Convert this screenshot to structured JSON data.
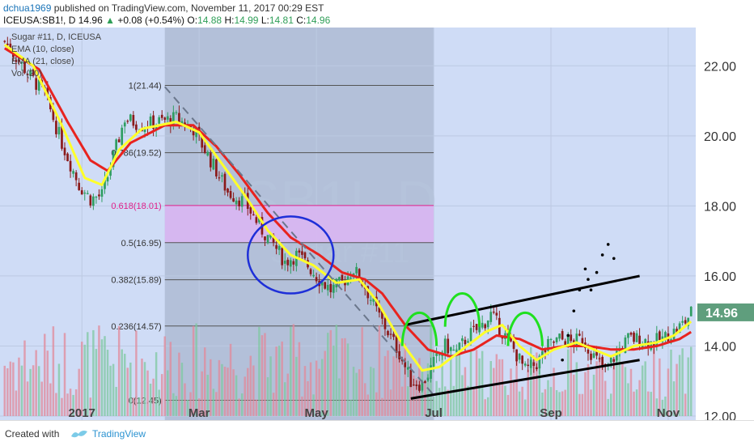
{
  "header": {
    "user": "dchua1969",
    "published_text": "published on TradingView.com, November 11, 2017 00:29 EST",
    "symbol": "ICEUSA:SB1!, D",
    "last": "14.96",
    "change": "+0.08 (+0.54%)",
    "open_label": "O:",
    "open": "14.88",
    "high_label": "H:",
    "high": "14.99",
    "low_label": "L:",
    "low": "14.81",
    "close_label": "C:",
    "close": "14.96"
  },
  "legend": {
    "title": "Sugar #11, D, ICEUSA",
    "ema_fast": "EMA (10, close)",
    "ema_slow": "EMA (21, close)",
    "vol": "Vol (20)"
  },
  "watermark": {
    "symbol": "SB1!, D",
    "name": "Sugar #11"
  },
  "price_badge": "14.96",
  "footer": {
    "created_with": "Created with",
    "brand": "TradingView"
  },
  "colors": {
    "background": "#cfdcf6",
    "shade": "#aab7cf",
    "fib_band": "#d9b6f2",
    "fib_line": "#555555",
    "fib_label_pink": "#e0208a",
    "ema_fast": "#ffff2a",
    "ema_slow": "#e8231f",
    "candle_up": "#2f9e62",
    "candle_down": "#8b1a1a",
    "vol_up": "#7fc8a0",
    "vol_down": "#e28a9a",
    "circle": "#1e2fd8",
    "arc": "#1fe01f",
    "price_badge": "#5f9e7d"
  },
  "chart_data": {
    "type": "candlestick",
    "title": "Sugar #11, D, ICEUSA",
    "ylim": [
      12.0,
      23.0
    ],
    "y_ticks": [
      "12.00",
      "14.00",
      "16.00",
      "18.00",
      "20.00",
      "22.00"
    ],
    "x_ticks": [
      "2017",
      "Mar",
      "May",
      "Jul",
      "Sep",
      "Nov"
    ],
    "x_tick_index": [
      27,
      68,
      109,
      150,
      191,
      232
    ],
    "total_bars": 241,
    "series": [
      {
        "name": "Price",
        "anchors": [
          [
            0,
            22.7
          ],
          [
            8,
            21.8
          ],
          [
            14,
            21.2
          ],
          [
            20,
            19.8
          ],
          [
            26,
            18.6
          ],
          [
            30,
            18.2
          ],
          [
            34,
            18.3
          ],
          [
            38,
            19.4
          ],
          [
            42,
            20.5
          ],
          [
            48,
            20.3
          ],
          [
            54,
            20.4
          ],
          [
            60,
            20.5
          ],
          [
            66,
            20.2
          ],
          [
            70,
            19.6
          ],
          [
            74,
            19.0
          ],
          [
            78,
            18.4
          ],
          [
            84,
            18.1
          ],
          [
            90,
            17.3
          ],
          [
            94,
            16.9
          ],
          [
            98,
            16.4
          ],
          [
            102,
            16.6
          ],
          [
            106,
            16.3
          ],
          [
            110,
            15.9
          ],
          [
            114,
            15.6
          ],
          [
            118,
            15.8
          ],
          [
            122,
            16.2
          ],
          [
            126,
            15.7
          ],
          [
            130,
            15.0
          ],
          [
            134,
            14.4
          ],
          [
            138,
            13.8
          ],
          [
            142,
            13.0
          ],
          [
            146,
            12.9
          ],
          [
            150,
            13.5
          ],
          [
            154,
            14.0
          ],
          [
            158,
            13.8
          ],
          [
            162,
            14.3
          ],
          [
            166,
            14.5
          ],
          [
            170,
            14.9
          ],
          [
            174,
            14.4
          ],
          [
            178,
            13.9
          ],
          [
            182,
            13.3
          ],
          [
            186,
            13.5
          ],
          [
            190,
            14.0
          ],
          [
            194,
            14.2
          ],
          [
            198,
            14.1
          ],
          [
            202,
            14.2
          ],
          [
            206,
            13.7
          ],
          [
            210,
            13.3
          ],
          [
            214,
            13.8
          ],
          [
            218,
            14.2
          ],
          [
            222,
            14.2
          ],
          [
            226,
            14.1
          ],
          [
            230,
            14.2
          ],
          [
            234,
            14.4
          ],
          [
            238,
            14.7
          ],
          [
            240,
            14.96
          ]
        ]
      },
      {
        "name": "EMA (10, close)",
        "anchors": [
          [
            0,
            22.6
          ],
          [
            10,
            22.0
          ],
          [
            20,
            20.3
          ],
          [
            28,
            18.8
          ],
          [
            34,
            18.6
          ],
          [
            40,
            19.6
          ],
          [
            48,
            20.2
          ],
          [
            60,
            20.4
          ],
          [
            68,
            20.1
          ],
          [
            76,
            19.2
          ],
          [
            84,
            18.3
          ],
          [
            92,
            17.3
          ],
          [
            100,
            16.6
          ],
          [
            108,
            16.3
          ],
          [
            116,
            15.8
          ],
          [
            124,
            15.9
          ],
          [
            130,
            15.3
          ],
          [
            138,
            14.2
          ],
          [
            146,
            13.3
          ],
          [
            152,
            13.4
          ],
          [
            160,
            13.9
          ],
          [
            168,
            14.4
          ],
          [
            174,
            14.6
          ],
          [
            180,
            14.0
          ],
          [
            186,
            13.6
          ],
          [
            192,
            13.9
          ],
          [
            200,
            14.1
          ],
          [
            206,
            13.9
          ],
          [
            212,
            13.7
          ],
          [
            220,
            14.0
          ],
          [
            228,
            14.1
          ],
          [
            234,
            14.3
          ],
          [
            240,
            14.7
          ]
        ]
      },
      {
        "name": "EMA (21, close)",
        "anchors": [
          [
            0,
            22.5
          ],
          [
            12,
            21.9
          ],
          [
            22,
            20.4
          ],
          [
            30,
            19.3
          ],
          [
            36,
            19.0
          ],
          [
            44,
            19.8
          ],
          [
            56,
            20.3
          ],
          [
            66,
            20.3
          ],
          [
            74,
            19.7
          ],
          [
            82,
            18.9
          ],
          [
            92,
            17.8
          ],
          [
            100,
            17.1
          ],
          [
            110,
            16.6
          ],
          [
            118,
            16.1
          ],
          [
            126,
            15.9
          ],
          [
            132,
            15.5
          ],
          [
            140,
            14.6
          ],
          [
            148,
            13.9
          ],
          [
            156,
            13.7
          ],
          [
            164,
            13.9
          ],
          [
            172,
            14.3
          ],
          [
            180,
            14.2
          ],
          [
            188,
            13.9
          ],
          [
            196,
            14.0
          ],
          [
            204,
            14.0
          ],
          [
            212,
            13.9
          ],
          [
            220,
            13.9
          ],
          [
            228,
            14.0
          ],
          [
            236,
            14.2
          ],
          [
            240,
            14.4
          ]
        ]
      }
    ],
    "fibonacci": [
      {
        "ratio": "1",
        "price": 21.44,
        "label": "1(21.44)"
      },
      {
        "ratio": "0.786",
        "price": 19.52,
        "label": "0.786(19.52)"
      },
      {
        "ratio": "0.618",
        "price": 18.01,
        "label": "0.618(18.01)"
      },
      {
        "ratio": "0.5",
        "price": 16.95,
        "label": "0.5(16.95)"
      },
      {
        "ratio": "0.382",
        "price": 15.89,
        "label": "0.382(15.89)"
      },
      {
        "ratio": "0.236",
        "price": 14.57,
        "label": "0.236(14.57)"
      },
      {
        "ratio": "0",
        "price": 12.45,
        "label": "0(12.45)"
      }
    ],
    "annotations": {
      "shaded_range": [
        56,
        150
      ],
      "fib_band": [
        16.95,
        18.01
      ],
      "downtrend_line": [
        [
          56,
          21.4
        ],
        [
          150,
          12.6
        ]
      ],
      "channel_upper": [
        [
          140,
          14.6
        ],
        [
          222,
          16.0
        ]
      ],
      "channel_lower": [
        [
          142,
          12.5
        ],
        [
          222,
          13.6
        ]
      ],
      "ellipse": {
        "center": [
          100,
          16.6
        ],
        "half_width_bars": 15,
        "half_height_price": 1.1
      },
      "arcs": [
        {
          "center": [
            145,
            14.0
          ],
          "half_width_bars": 6,
          "rise": 0.95
        },
        {
          "center": [
            160,
            14.55
          ],
          "half_width_bars": 6,
          "rise": 0.95
        },
        {
          "center": [
            182,
            14.0
          ],
          "half_width_bars": 6,
          "rise": 0.95
        }
      ],
      "projection_dots": [
        [
          195,
          13.6
        ],
        [
          197,
          14.3
        ],
        [
          199,
          15.0
        ],
        [
          201,
          15.6
        ],
        [
          203,
          16.2
        ],
        [
          204,
          15.9
        ],
        [
          205,
          15.6
        ],
        [
          207,
          16.1
        ],
        [
          209,
          16.6
        ],
        [
          211,
          16.9
        ],
        [
          213,
          16.5
        ]
      ]
    }
  }
}
